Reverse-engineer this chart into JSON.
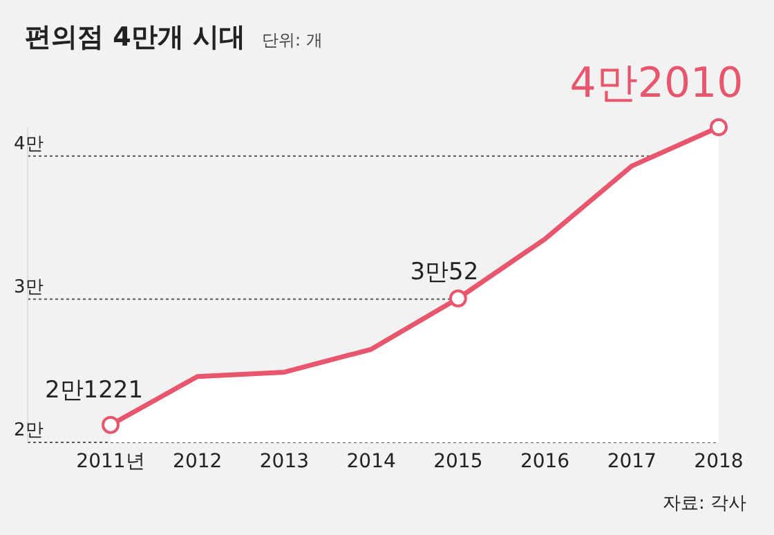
{
  "chart_data": {
    "type": "area",
    "title": "편의점 4만개 시대",
    "subtitle": "단위: 개",
    "categories": [
      "2011년",
      "2012",
      "2013",
      "2014",
      "2015",
      "2016",
      "2017",
      "2018"
    ],
    "series": [
      {
        "color": "#e8566e",
        "values": [
          2.1221,
          2.46,
          2.49,
          2.65,
          3.0052,
          3.42,
          3.93,
          4.201
        ],
        "value_labels": [
          "2만1221",
          null,
          null,
          null,
          "3만52",
          null,
          null,
          "4만2010"
        ]
      }
    ],
    "ylim": [
      2,
      4.201
    ],
    "yticks": [
      {
        "value": 2,
        "label": "2만"
      },
      {
        "value": 3,
        "label": "3만"
      },
      {
        "value": 4,
        "label": "4만"
      }
    ],
    "grid": "y",
    "legend": false,
    "annotations": [
      "자료: 각사"
    ]
  }
}
